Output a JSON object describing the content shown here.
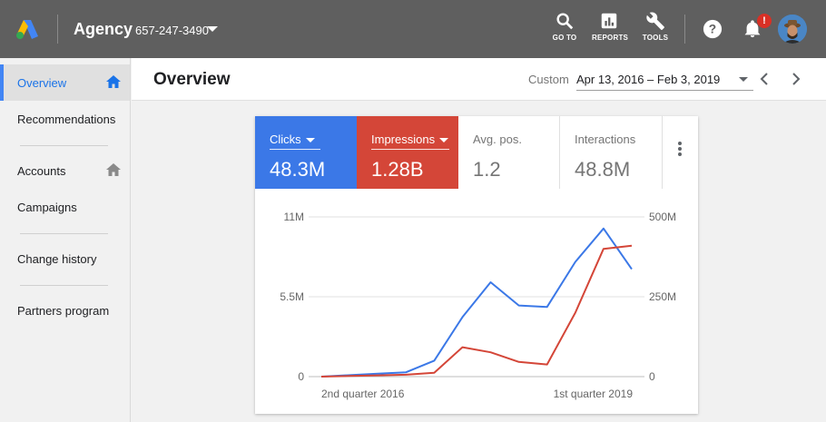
{
  "account": {
    "name": "Agency",
    "id": "657-247-3490"
  },
  "tools": {
    "goto": "GO TO",
    "reports": "REPORTS",
    "tools": "TOOLS"
  },
  "notifications": {
    "badge": "!"
  },
  "sidebar": {
    "items": [
      {
        "label": "Overview"
      },
      {
        "label": "Recommendations"
      },
      {
        "label": "Accounts"
      },
      {
        "label": "Campaigns"
      },
      {
        "label": "Change history"
      },
      {
        "label": "Partners program"
      }
    ]
  },
  "header": {
    "title": "Overview",
    "custom_label": "Custom",
    "date_range": "Apr 13, 2016 – Feb 3, 2019"
  },
  "metrics": [
    {
      "label": "Clicks",
      "value": "48.3M",
      "color": "#3b78e7"
    },
    {
      "label": "Impressions",
      "value": "1.28B",
      "color": "#d44638"
    },
    {
      "label": "Avg. pos.",
      "value": "1.2"
    },
    {
      "label": "Interactions",
      "value": "48.8M"
    }
  ],
  "chart_data": {
    "type": "line",
    "x": [
      "2nd quarter 2016",
      "",
      "",
      "",
      "",
      "",
      "",
      "",
      "",
      "",
      "1st quarter 2019",
      ""
    ],
    "x_tick_labels": [
      "2nd quarter 2016",
      "1st quarter 2019"
    ],
    "left_axis": {
      "ticks": [
        "0",
        "5.5M",
        "11M"
      ],
      "ylim": [
        0,
        11000000
      ]
    },
    "right_axis": {
      "ticks": [
        "0",
        "250M",
        "500M"
      ],
      "ylim": [
        0,
        500000000
      ]
    },
    "grid": true,
    "series": [
      {
        "name": "Clicks",
        "axis": "left",
        "color": "#3b78e7",
        "values": [
          0,
          100000,
          200000,
          300000,
          1100000,
          4100000,
          6500000,
          4900000,
          4800000,
          7900000,
          10200000,
          7400000
        ]
      },
      {
        "name": "Impressions",
        "axis": "right",
        "color": "#d44638",
        "values": [
          0,
          2000000,
          4000000,
          6000000,
          12000000,
          92000000,
          76000000,
          46000000,
          38000000,
          200000000,
          400000000,
          410000000
        ]
      }
    ]
  }
}
